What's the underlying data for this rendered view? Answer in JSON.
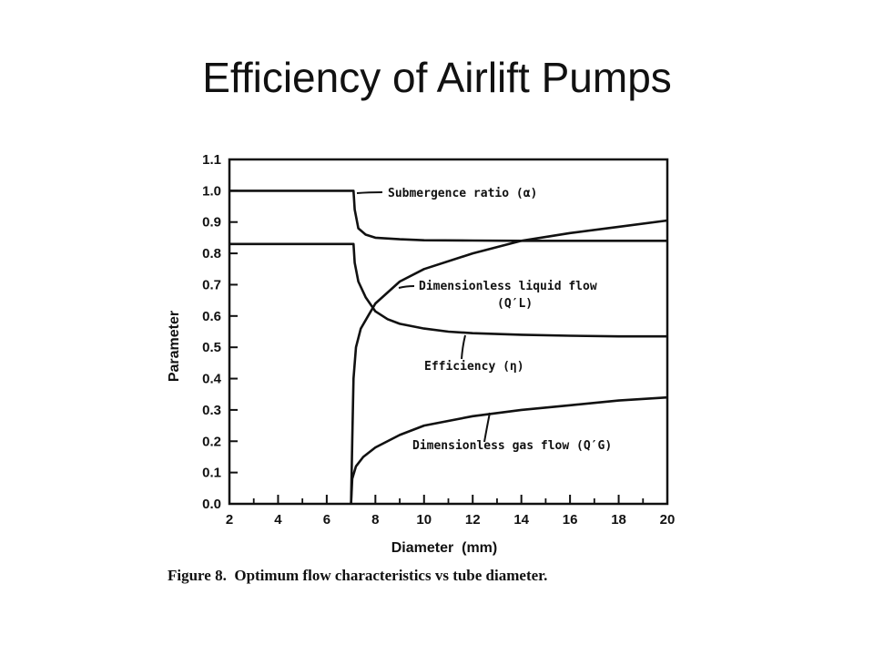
{
  "slide": {
    "title": "Efficiency of Airlift Pumps"
  },
  "chart_data": {
    "type": "line",
    "ylabel": "Parameter",
    "xlabel": "Diameter  (mm)",
    "xlim": [
      2,
      20
    ],
    "ylim": [
      0,
      1.1
    ],
    "xticks": [
      "2",
      "4",
      "6",
      "8",
      "10",
      "12",
      "14",
      "16",
      "18",
      "20"
    ],
    "yticks": [
      "0.0",
      "0.1",
      "0.2",
      "0.3",
      "0.4",
      "0.5",
      "0.6",
      "0.7",
      "0.8",
      "0.9",
      "1.0",
      "1.1"
    ],
    "caption": "Figure 8.  Optimum flow characteristics vs tube diameter.",
    "series": [
      {
        "name": "Submergence ratio (α)",
        "x": [
          2,
          7.1,
          7.15,
          7.3,
          7.6,
          8,
          9,
          10,
          12,
          14,
          16,
          18,
          20
        ],
        "y": [
          1.0,
          1.0,
          0.94,
          0.88,
          0.86,
          0.85,
          0.845,
          0.842,
          0.841,
          0.84,
          0.84,
          0.84,
          0.84
        ]
      },
      {
        "name": "Efficiency (η)",
        "x": [
          2,
          7.1,
          7.15,
          7.3,
          7.6,
          8,
          8.5,
          9,
          10,
          11,
          12,
          14,
          16,
          18,
          20
        ],
        "y": [
          0.83,
          0.83,
          0.77,
          0.71,
          0.66,
          0.615,
          0.59,
          0.575,
          0.56,
          0.55,
          0.545,
          0.54,
          0.537,
          0.535,
          0.535
        ]
      },
      {
        "name": "Dimensionless liquid flow (Q′L)",
        "x": [
          7.0,
          7.05,
          7.1,
          7.2,
          7.4,
          7.7,
          8,
          9,
          10,
          12,
          14,
          16,
          18,
          20
        ],
        "y": [
          0.0,
          0.2,
          0.4,
          0.5,
          0.56,
          0.6,
          0.64,
          0.71,
          0.75,
          0.8,
          0.84,
          0.865,
          0.885,
          0.905
        ]
      },
      {
        "name": "Dimensionless gas flow (Q′G)",
        "x": [
          7.0,
          7.05,
          7.2,
          7.5,
          8,
          9,
          10,
          12,
          14,
          16,
          18,
          20
        ],
        "y": [
          0.0,
          0.08,
          0.12,
          0.15,
          0.18,
          0.22,
          0.25,
          0.28,
          0.3,
          0.315,
          0.33,
          0.34
        ]
      }
    ],
    "annotations": [
      {
        "text": "Submergence ratio  (α)"
      },
      {
        "text": "Dimensionless liquid flow"
      },
      {
        "text": "(Q′L)"
      },
      {
        "text": "Efficiency  (η)"
      },
      {
        "text": "Dimensionless gas flow  (Q′G)"
      }
    ],
    "grid": false,
    "legend": "none"
  }
}
